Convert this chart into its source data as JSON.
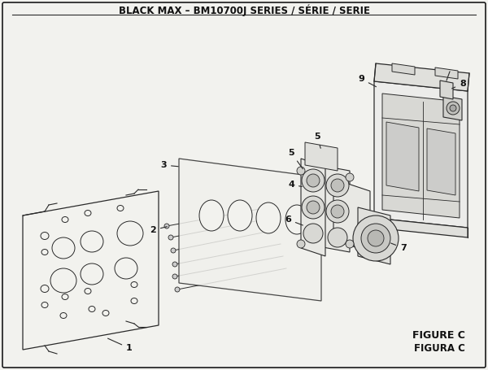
{
  "title": "BLACK MAX – BM10700J SERIES / SÉRIE / SERIE",
  "figure_label": "FIGURE C",
  "figura_label": "FIGURA C",
  "bg_color": "#f2f2ee",
  "border_color": "#1a1a1a",
  "line_color": "#2a2a2a",
  "text_color": "#111111",
  "title_fontsize": 8.5,
  "label_fontsize": 8,
  "figure_label_fontsize": 9
}
